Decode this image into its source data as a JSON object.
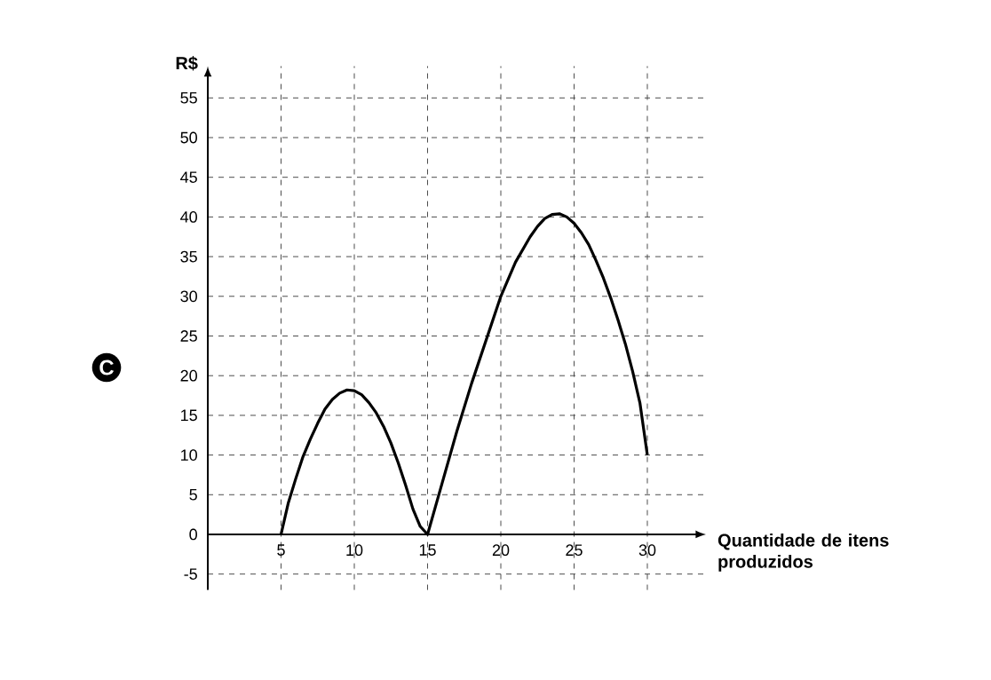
{
  "chart_data": {
    "type": "line",
    "xlabel": "Quantidade de itens produzidos",
    "ylabel": "R$",
    "annotations": [
      "C"
    ],
    "x": [
      5,
      5.5,
      6,
      6.5,
      7,
      7.5,
      8,
      8.5,
      9,
      9.5,
      10,
      10.5,
      11,
      11.5,
      12,
      12.5,
      13,
      13.5,
      14,
      14.5,
      15,
      16,
      17,
      18,
      19,
      20,
      21,
      22,
      22.5,
      23,
      23.5,
      24,
      24.5,
      25,
      25.5,
      26,
      26.5,
      27,
      27.5,
      28,
      28.5,
      29,
      29.5,
      30
    ],
    "series": [
      {
        "color": "#000000",
        "values": [
          0,
          4,
          7,
          9.8,
          12,
          14,
          15.8,
          17,
          17.8,
          18.2,
          18.1,
          17.6,
          16.6,
          15.3,
          13.6,
          11.5,
          9,
          6.2,
          3.2,
          1,
          0,
          6.5,
          13,
          19,
          24.5,
          30,
          34.3,
          37.5,
          38.8,
          39.8,
          40.3,
          40.4,
          40,
          39.2,
          38,
          36.5,
          34.5,
          32.3,
          29.8,
          27,
          24,
          20.5,
          16.5,
          10
        ]
      }
    ],
    "xlim": [
      0,
      34
    ],
    "ylim": [
      -7,
      59
    ],
    "xticks": [
      5,
      10,
      15,
      20,
      25,
      30
    ],
    "yticks": [
      -5,
      0,
      5,
      10,
      15,
      20,
      25,
      30,
      35,
      40,
      45,
      50,
      55
    ],
    "grid": true,
    "marker": "none",
    "line_style": "solid"
  }
}
